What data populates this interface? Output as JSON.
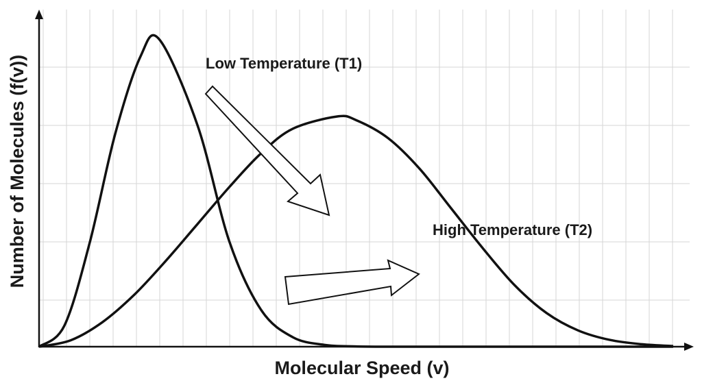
{
  "chart_data": {
    "type": "line",
    "title": "",
    "xlabel": "Molecular Speed (v)",
    "ylabel": "Number of Molecules (f(v))",
    "xlim": [
      0,
      1
    ],
    "ylim": [
      0,
      1
    ],
    "grid": true,
    "x_ticks_shown": false,
    "y_ticks_shown": false,
    "series": [
      {
        "name": "Low Temperature (T1)",
        "x": [
          0,
          0.04,
          0.08,
          0.12,
          0.16,
          0.19,
          0.25,
          0.3,
          0.35,
          0.4,
          0.45,
          0.5,
          0.55,
          0.6,
          0.65,
          0.7,
          0.8,
          0.9,
          1.0
        ],
        "y": [
          0,
          0.069,
          0.34,
          0.693,
          0.946,
          1.0,
          0.72,
          0.343,
          0.12,
          0.031,
          0.006,
          0.001,
          0,
          0,
          0,
          0,
          0,
          0,
          0
        ]
      },
      {
        "name": "High Temperature (T2)",
        "x": [
          0,
          0.05,
          0.1,
          0.15,
          0.2,
          0.25,
          0.3,
          0.35,
          0.4,
          0.47,
          0.5,
          0.55,
          0.6,
          0.65,
          0.7,
          0.75,
          0.8,
          0.85,
          0.9,
          0.95,
          1.0
        ],
        "y": [
          0,
          0.021,
          0.08,
          0.169,
          0.28,
          0.4,
          0.52,
          0.63,
          0.71,
          0.75,
          0.738,
          0.68,
          0.58,
          0.45,
          0.32,
          0.2,
          0.11,
          0.053,
          0.022,
          0.008,
          0.002
        ]
      }
    ],
    "annotations": [
      {
        "text": "Low Temperature (T1)",
        "target_series": 0
      },
      {
        "text": "High Temperature (T2)",
        "target_series": 1
      }
    ],
    "arrows": [
      {
        "from": "Low Temperature (T1)",
        "to": "High Temperature (T2)",
        "meaning": "peak shifts lower and to the right"
      },
      {
        "direction": "right",
        "meaning": "distribution shifts toward higher speed"
      }
    ]
  }
}
